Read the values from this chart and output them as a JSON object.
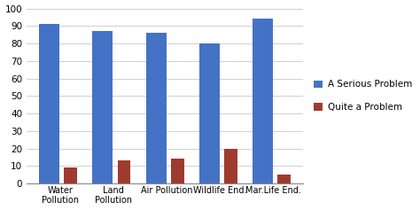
{
  "categories": [
    "Water\nPollution",
    "Land\nPollution",
    "Air Pollution",
    "Wildlife End.",
    "Mar.Life End."
  ],
  "serious_values": [
    91,
    87,
    86,
    80,
    94
  ],
  "quite_values": [
    9,
    13,
    14,
    20,
    5
  ],
  "serious_color": "#4472C4",
  "quite_color": "#9E3B2E",
  "serious_label": "A Serious Problem",
  "quite_label": "Quite a Problem",
  "ylim": [
    0,
    100
  ],
  "yticks": [
    0,
    10,
    20,
    30,
    40,
    50,
    60,
    70,
    80,
    90,
    100
  ],
  "bar_width": 0.38,
  "bar_gap": 0.02,
  "background_color": "#ffffff",
  "grid_color": "#c8c8c8"
}
